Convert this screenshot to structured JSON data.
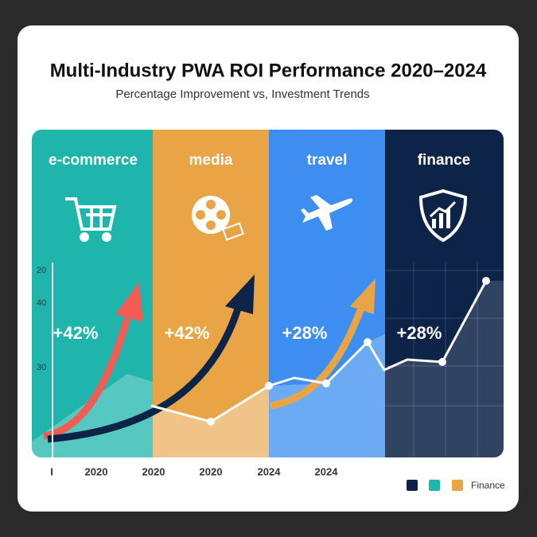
{
  "title": "Multi-Industry PWA ROI Performance 2020–2024",
  "subtitle": "Percentage Improvement vs, Investment Trends",
  "panels": [
    {
      "label": "e-commerce",
      "value_label": "+42%"
    },
    {
      "label": "media",
      "value_label": "+42%"
    },
    {
      "label": "travel",
      "value_label": "+28%"
    },
    {
      "label": "finance",
      "value_label": "+28%"
    }
  ],
  "y_axis_labels": [
    "20",
    "40",
    "30"
  ],
  "x_axis_labels": [
    "I",
    "2020",
    "2020",
    "2020",
    "2024",
    "2024"
  ],
  "legend": {
    "label": "Finance"
  }
}
